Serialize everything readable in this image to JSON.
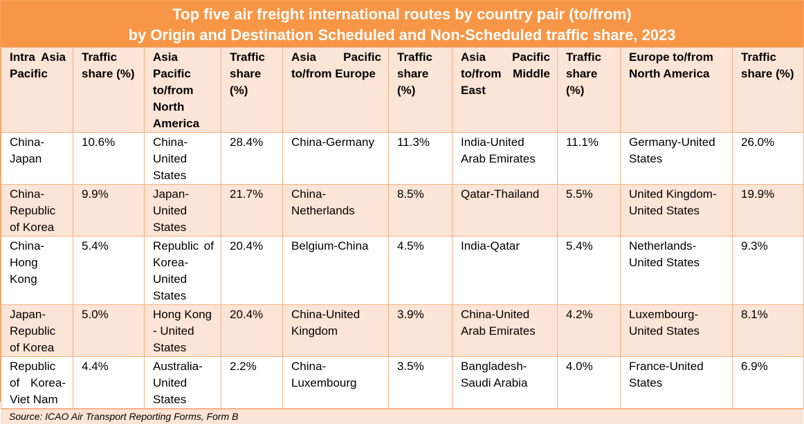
{
  "title": {
    "line1": "Top five air freight international routes by country pair (to/from)",
    "line2": "by Origin and Destination Scheduled and Non-Scheduled traffic share, 2023"
  },
  "colors": {
    "header": "#f79646",
    "band": "#fce4d6",
    "border": "#f4b183"
  },
  "columns": [
    "Intra Asia Pacific",
    "Traffic share (%)",
    "Asia Pacific to/from North America",
    "Traffic share (%)",
    "Asia Pacific to/from Europe",
    "Traffic share (%)",
    "Asia Pacific to/from Middle East",
    "Traffic share (%)",
    "Europe to/from North America",
    "Traffic share (%)"
  ],
  "rows": [
    [
      "China-Japan",
      "10.6%",
      "China-United States",
      "28.4%",
      "China-Germany",
      "11.3%",
      "India-United Arab Emirates",
      "11.1%",
      "Germany-United States",
      "26.0%"
    ],
    [
      "China-Republic of Korea",
      "9.9%",
      "Japan-United States",
      "21.7%",
      "China-Netherlands",
      "8.5%",
      "Qatar-Thailand",
      "5.5%",
      "United Kingdom-United States",
      "19.9%"
    ],
    [
      "China-Hong Kong",
      "5.4%",
      "Republic of Korea-United States",
      "20.4%",
      "Belgium-China",
      "4.5%",
      "India-Qatar",
      "5.4%",
      "Netherlands-United States",
      "9.3%"
    ],
    [
      "Japan-Republic of Korea",
      "5.0%",
      "Hong Kong - United States",
      "20.4%",
      "China-United Kingdom",
      "3.9%",
      "China-United Arab Emirates",
      "4.2%",
      "Luxembourg-United States",
      "8.1%"
    ],
    [
      "Republic of Korea-Viet Nam",
      "4.4%",
      "Australia-United States",
      "2.2%",
      "China-Luxembourg",
      "3.5%",
      "Bangladesh-Saudi Arabia",
      "4.0%",
      "France-United States",
      "6.9%"
    ]
  ],
  "source": "Source: ICAO Air Transport Reporting Forms, Form B"
}
